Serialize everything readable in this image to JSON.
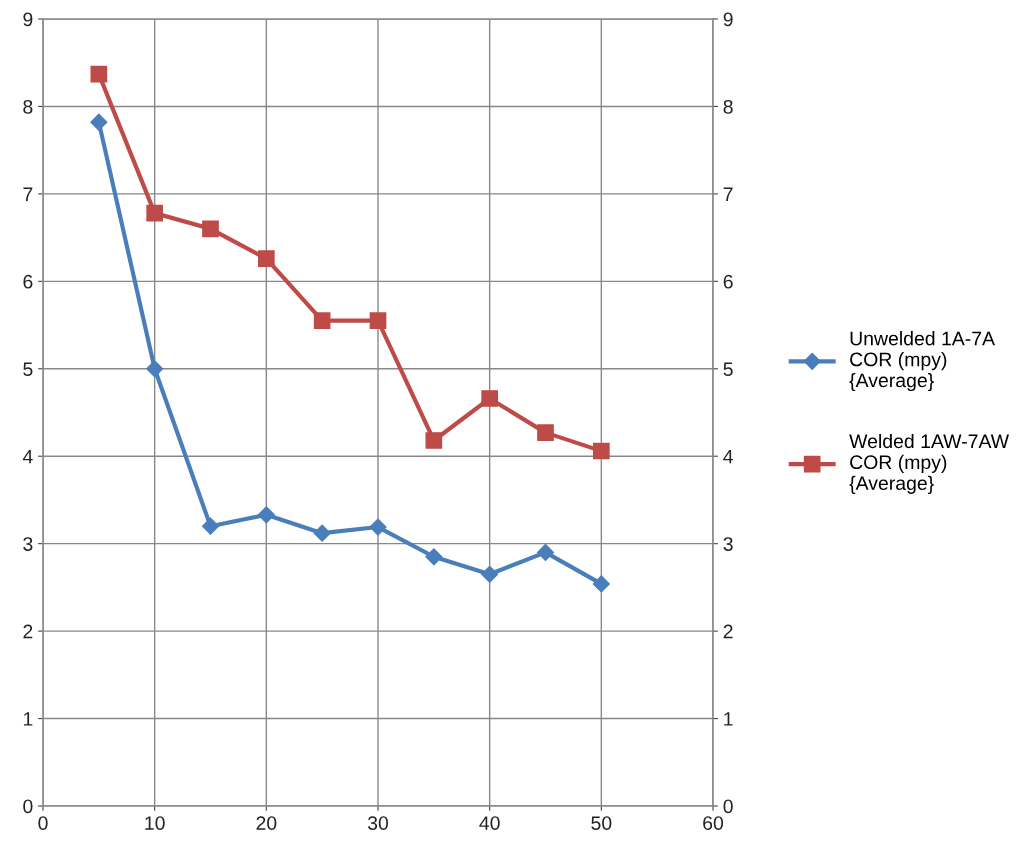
{
  "chart_data": {
    "type": "line",
    "x": [
      5,
      10,
      15,
      20,
      25,
      30,
      35,
      40,
      45,
      50
    ],
    "series": [
      {
        "name": "Unwelded 1A-7A\nCOR (mpy)\n{Average}",
        "color": "#4a7ebb",
        "marker": "diamond",
        "values": [
          7.82,
          5.0,
          3.2,
          3.33,
          3.12,
          3.19,
          2.85,
          2.65,
          2.9,
          2.54
        ]
      },
      {
        "name": "Welded 1AW-7AW\nCOR (mpy)\n{Average}",
        "color": "#be4b48",
        "marker": "square",
        "values": [
          8.37,
          6.78,
          6.6,
          6.26,
          5.55,
          5.55,
          4.18,
          4.66,
          4.27,
          4.06
        ]
      }
    ],
    "xlim": [
      0,
      60
    ],
    "xticks": [
      0,
      10,
      20,
      30,
      40,
      50,
      60
    ],
    "ylim": [
      0,
      9
    ],
    "yticks": [
      0,
      1,
      2,
      3,
      4,
      5,
      6,
      7,
      8,
      9
    ],
    "y2lim": [
      0,
      9
    ],
    "y2ticks": [
      0,
      1,
      2,
      3,
      4,
      5,
      6,
      7,
      8,
      9
    ],
    "grid": true,
    "legend": "right",
    "line_style": "solid"
  }
}
